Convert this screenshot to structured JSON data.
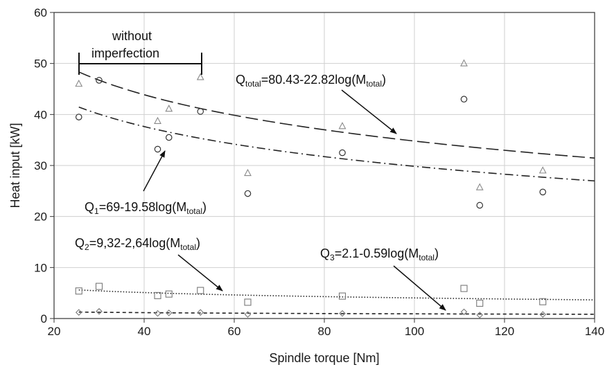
{
  "chart_data": {
    "type": "scatter",
    "xlabel": "Spindle torque [Nm]",
    "ylabel": "Heat input [kW]",
    "xlim": [
      20,
      140
    ],
    "ylim": [
      0,
      60
    ],
    "x_ticks": [
      20,
      40,
      60,
      80,
      100,
      120,
      140
    ],
    "y_ticks": [
      0,
      10,
      20,
      30,
      40,
      50,
      60
    ],
    "grid": true,
    "series": [
      {
        "marker": "triangle",
        "x": [
          25.5,
          43,
          45.5,
          52.5,
          63,
          84,
          111,
          114.5,
          128.5
        ],
        "y": [
          46,
          38.7,
          41.1,
          47.3,
          28.5,
          37.7,
          50,
          25.7,
          29
        ]
      },
      {
        "marker": "circle",
        "x": [
          25.5,
          30,
          43,
          45.5,
          52.5,
          63,
          84,
          111,
          114.5,
          128.5
        ],
        "y": [
          39.5,
          46.7,
          33.2,
          35.5,
          40.6,
          24.5,
          32.5,
          43,
          22.2,
          24.8
        ]
      },
      {
        "marker": "square",
        "x": [
          25.5,
          30,
          43,
          45.5,
          52.5,
          63,
          84,
          111,
          114.5,
          128.5
        ],
        "y": [
          5.4,
          6.3,
          4.5,
          4.8,
          5.5,
          3.2,
          4.4,
          5.9,
          3.0,
          3.3
        ]
      },
      {
        "marker": "diamond",
        "x": [
          25.5,
          30,
          43,
          45.5,
          52.5,
          63,
          84,
          111,
          114.5,
          128.5
        ],
        "y": [
          1.2,
          1.4,
          1.0,
          1.1,
          1.2,
          0.8,
          1.0,
          1.3,
          0.7,
          0.8
        ]
      }
    ],
    "fits": [
      {
        "a": 80.43,
        "b": 22.82,
        "x_range": [
          25.5,
          140
        ],
        "dash": "long-dash"
      },
      {
        "a": 69,
        "b": 19.58,
        "x_range": [
          25.5,
          140
        ],
        "dash": "dash-dot"
      },
      {
        "a": 9.32,
        "b": 2.64,
        "x_range": [
          25.5,
          140
        ],
        "dash": "dotted"
      },
      {
        "a": 2.1,
        "b": 0.59,
        "x_range": [
          25.5,
          140
        ],
        "dash": "short-dash"
      }
    ],
    "annotations": {
      "without_imperfection": {
        "line1": "without",
        "line2": "imperfection",
        "range_x": [
          25.5,
          52.5
        ],
        "y": 52.5
      },
      "q_total": {
        "main": "Q",
        "sub": "total",
        "eq": "=80.43-22.82log(M",
        "sub2": "total",
        "close": ")"
      },
      "q1": {
        "main": "Q",
        "sub": "1",
        "eq": "=69-19.58log(M",
        "sub2": "total",
        "close": ")"
      },
      "q2": {
        "main": "Q",
        "sub": "2",
        "eq": "=9,32-2,64log(M",
        "sub2": "total",
        "close": ")"
      },
      "q3": {
        "main": "Q",
        "sub": "3",
        "eq": "=2.1-0.59log(M",
        "sub2": "total",
        "close": ")"
      }
    }
  }
}
